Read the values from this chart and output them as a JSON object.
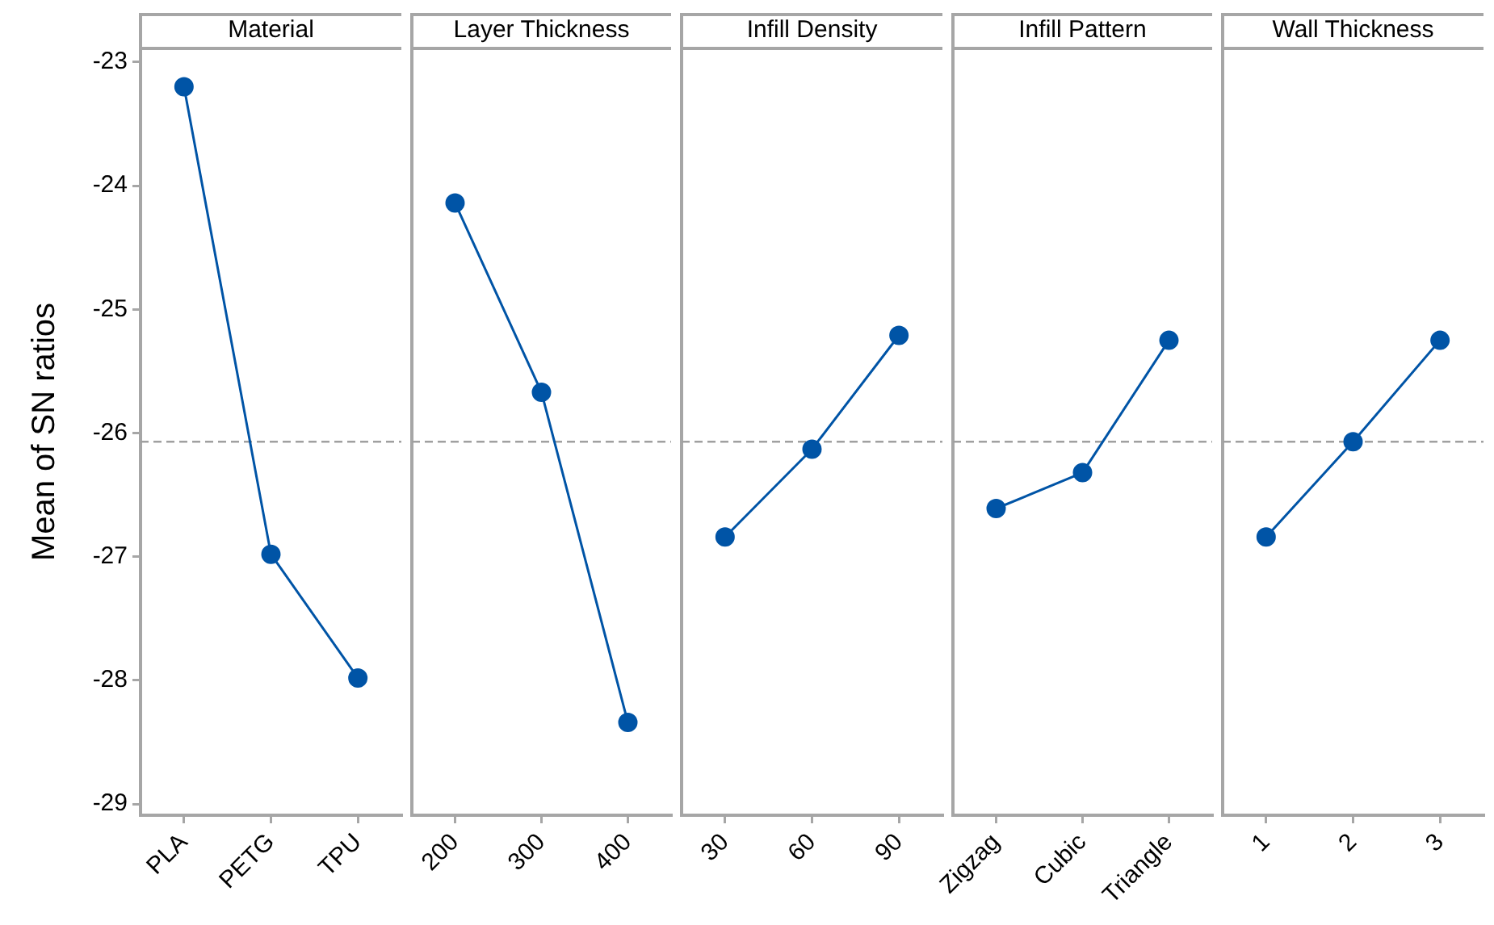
{
  "chart_data": [
    {
      "type": "line",
      "title": "Material",
      "ylabel": "Mean of SN ratios",
      "categories": [
        "PLA",
        "PETG",
        "TPU"
      ],
      "values": [
        -23.2,
        -26.98,
        -27.98
      ],
      "color": "#0054a6",
      "marker": "circle",
      "ylim": [
        -29.09,
        -22.89
      ],
      "yticks": [
        -29,
        -28,
        -27,
        -26,
        -25,
        -24,
        -23
      ],
      "ref_lines": [
        {
          "axis": "y",
          "value": -26.07,
          "color": "#a0a0a0",
          "line_style": "dashed"
        }
      ]
    },
    {
      "type": "line",
      "title": "Layer Thickness",
      "categories": [
        "200",
        "300",
        "400"
      ],
      "values": [
        -24.14,
        -25.67,
        -28.34
      ],
      "color": "#0054a6",
      "marker": "circle",
      "ylim": [
        -29.09,
        -22.89
      ],
      "ref_lines": [
        {
          "axis": "y",
          "value": -26.07,
          "color": "#a0a0a0",
          "line_style": "dashed"
        }
      ],
      "tick_labels": "x"
    },
    {
      "type": "line",
      "title": "Infill Density",
      "categories": [
        "30",
        "60",
        "90"
      ],
      "values": [
        -26.84,
        -26.13,
        -25.21
      ],
      "color": "#0054a6",
      "marker": "circle",
      "ylim": [
        -29.09,
        -22.89
      ],
      "ref_lines": [
        {
          "axis": "y",
          "value": -26.07,
          "color": "#a0a0a0",
          "line_style": "dashed"
        }
      ],
      "tick_labels": "x"
    },
    {
      "type": "line",
      "title": "Infill Pattern",
      "categories": [
        "Zigzag",
        "Cubic",
        "Triangle"
      ],
      "values": [
        -26.61,
        -26.32,
        -25.25
      ],
      "color": "#0054a6",
      "marker": "circle",
      "ylim": [
        -29.09,
        -22.89
      ],
      "ref_lines": [
        {
          "axis": "y",
          "value": -26.07,
          "color": "#a0a0a0",
          "line_style": "dashed"
        }
      ],
      "tick_labels": "x"
    },
    {
      "type": "line",
      "title": "Wall Thickness",
      "categories": [
        "1",
        "2",
        "3"
      ],
      "values": [
        -26.84,
        -26.07,
        -25.25
      ],
      "color": "#0054a6",
      "marker": "circle",
      "ylim": [
        -29.09,
        -22.89
      ],
      "ref_lines": [
        {
          "axis": "y",
          "value": -26.07,
          "color": "#a0a0a0",
          "line_style": "dashed"
        }
      ],
      "tick_labels": "x"
    }
  ]
}
